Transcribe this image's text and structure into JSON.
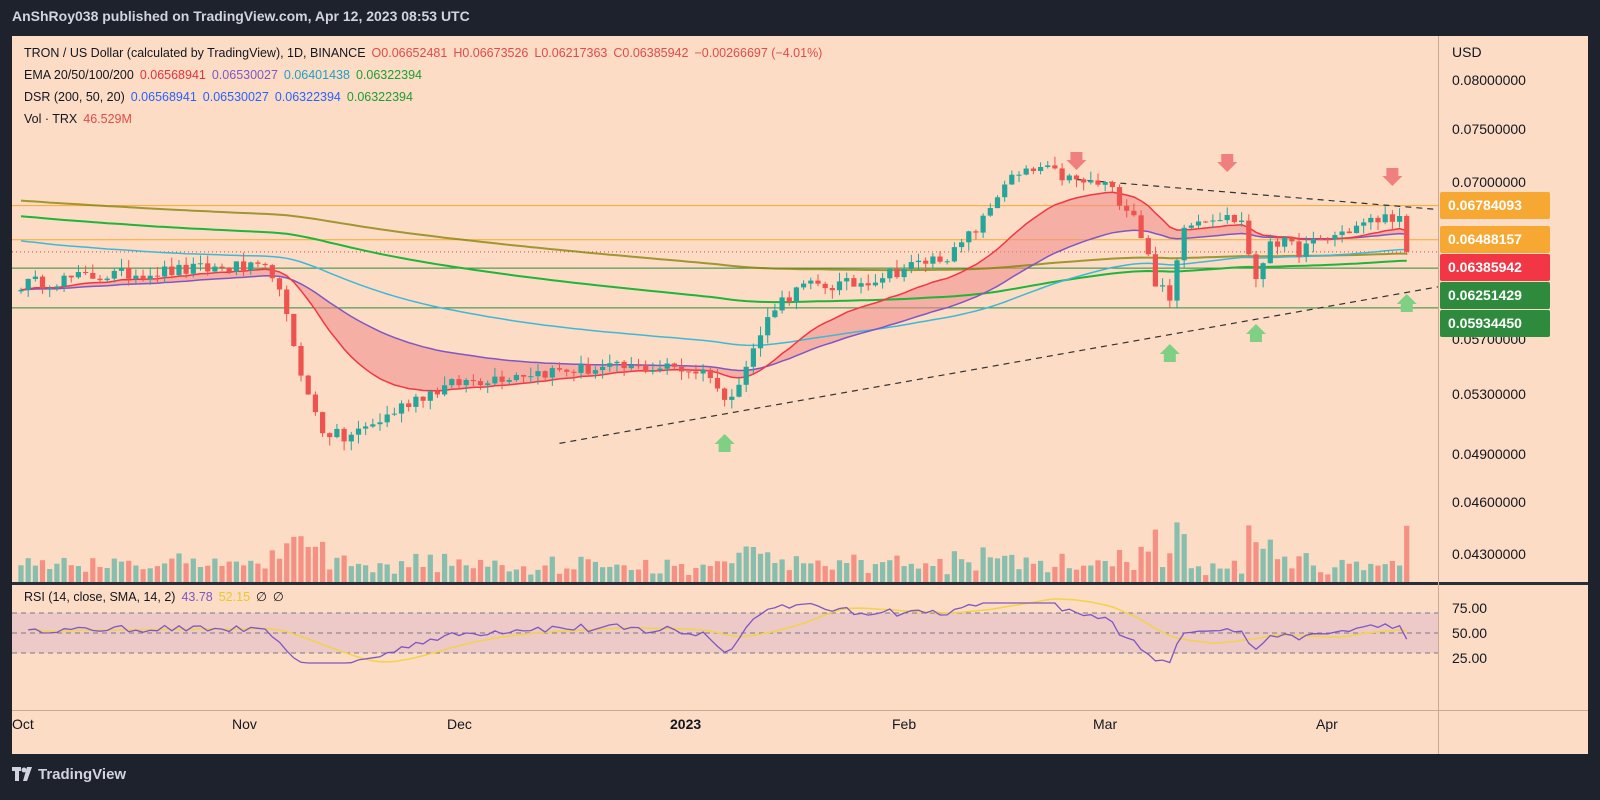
{
  "publisher": "AnShRoy038 published on TradingView.com, Apr 12, 2023 08:53 UTC",
  "legend": {
    "main": {
      "symbol": "TRON / US Dollar (calculated by TradingView), 1D, BINANCE",
      "open": "O0.06652481",
      "high": "H0.06673526",
      "low": "L0.06217363",
      "close": "C0.06385942",
      "change": "−0.00266697 (−4.01%)"
    },
    "ema": {
      "label": "EMA 20/50/100/200",
      "v1": "0.06568941",
      "v2": "0.06530027",
      "v3": "0.06401438",
      "v4": "0.06322394"
    },
    "dsr": {
      "label": "DSR (200, 50, 20)",
      "v1": "0.06568941",
      "v2": "0.06530027",
      "v3": "0.06322394",
      "v4": "0.06322394"
    },
    "vol": {
      "label": "Vol · TRX",
      "value": "46.529M"
    },
    "rsi": {
      "label": "RSI (14, close, SMA, 14, 2)",
      "v1": "43.78",
      "v2": "52.15",
      "v3": "∅",
      "v4": "∅"
    }
  },
  "currency": "USD",
  "price_ticks": [
    "0.08000000",
    "0.07500000",
    "0.07000000",
    "0.05700000",
    "0.05300000",
    "0.04900000",
    "0.04600000",
    "0.04300000"
  ],
  "badges": [
    {
      "value": "0.06784093",
      "color": "#f7a833"
    },
    {
      "value": "0.06488157",
      "color": "#f7a833"
    },
    {
      "value": "0.06385942",
      "color": "#f23645"
    },
    {
      "value": "0.06251429",
      "color": "#2e8b3e"
    },
    {
      "value": "0.05934450",
      "color": "#2e8b3e"
    }
  ],
  "rsi_ticks": [
    "75.00",
    "50.00",
    "25.00"
  ],
  "x_ticks": [
    "Oct",
    "Nov",
    "Dec",
    "2023",
    "Feb",
    "Mar",
    "Apr"
  ],
  "logo": "TradingView",
  "colors": {
    "up": "#26a69a",
    "down": "#ef5350",
    "ema20": "#f23645",
    "ema50": "#7e57c2",
    "ema100": "#3fb8d6",
    "ema200": "#1fb53a",
    "dsr": "#808000",
    "rsi": "#7e57c2",
    "rsi_sma": "#f2d34a"
  },
  "chart_data": {
    "type": "candlestick",
    "symbol": "TRON / US Dollar",
    "timeframe": "1D",
    "exchange": "BINANCE",
    "last": {
      "open": 0.06652481,
      "high": 0.06673526,
      "low": 0.06217363,
      "close": 0.06385942
    },
    "x_range": [
      "2022-10-01",
      "2023-04-12"
    ],
    "close_path": [
      [
        "2022-10-01",
        0.0612
      ],
      [
        "2022-10-10",
        0.0618
      ],
      [
        "2022-10-20",
        0.0622
      ],
      [
        "2022-10-31",
        0.0626
      ],
      [
        "2022-11-05",
        0.0622
      ],
      [
        "2022-11-08",
        0.0566
      ],
      [
        "2022-11-10",
        0.0528
      ],
      [
        "2022-11-12",
        0.0506
      ],
      [
        "2022-11-15",
        0.05
      ],
      [
        "2022-11-20",
        0.0512
      ],
      [
        "2022-11-25",
        0.0528
      ],
      [
        "2022-12-01",
        0.0538
      ],
      [
        "2022-12-10",
        0.0545
      ],
      [
        "2022-12-20",
        0.0548
      ],
      [
        "2022-12-31",
        0.0549
      ],
      [
        "2023-01-05",
        0.0545
      ],
      [
        "2023-01-07",
        0.0524
      ],
      [
        "2023-01-10",
        0.055
      ],
      [
        "2023-01-14",
        0.0596
      ],
      [
        "2023-01-18",
        0.061
      ],
      [
        "2023-01-25",
        0.0612
      ],
      [
        "2023-02-01",
        0.0625
      ],
      [
        "2023-02-08",
        0.0638
      ],
      [
        "2023-02-12",
        0.0665
      ],
      [
        "2023-02-15",
        0.07
      ],
      [
        "2023-02-20",
        0.0712
      ],
      [
        "2023-02-25",
        0.07
      ],
      [
        "2023-03-01",
        0.0697
      ],
      [
        "2023-03-05",
        0.0672
      ],
      [
        "2023-03-08",
        0.0615
      ],
      [
        "2023-03-10",
        0.0598
      ],
      [
        "2023-03-12",
        0.0664
      ],
      [
        "2023-03-16",
        0.067
      ],
      [
        "2023-03-20",
        0.0665
      ],
      [
        "2023-03-22",
        0.0612
      ],
      [
        "2023-03-24",
        0.065
      ],
      [
        "2023-03-28",
        0.064
      ],
      [
        "2023-04-01",
        0.065
      ],
      [
        "2023-04-05",
        0.066
      ],
      [
        "2023-04-10",
        0.067
      ],
      [
        "2023-04-11",
        0.0665
      ],
      [
        "2023-04-12",
        0.0638
      ]
    ],
    "ema": [
      {
        "name": "EMA 20",
        "last": 0.06568941
      },
      {
        "name": "EMA 50",
        "last": 0.06530027
      },
      {
        "name": "EMA 100",
        "last": 0.06401438
      },
      {
        "name": "EMA 200",
        "last": 0.06322394
      }
    ],
    "horizontal_levels": [
      0.06784093,
      0.06488157,
      0.06251429,
      0.0593445
    ],
    "rsi": {
      "last": 43.78,
      "sma_last": 52.15,
      "bands": [
        30,
        50,
        70
      ],
      "axis": [
        25,
        75
      ]
    },
    "volume_last": "46.529M",
    "y_axis_scale": "log"
  }
}
